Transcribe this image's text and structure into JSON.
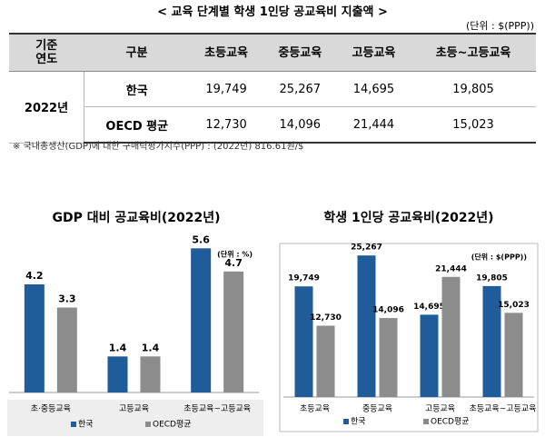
{
  "title": "< 교육 단계별 학생 1인당 공교육비 지출액 >",
  "unit": "(단위 : $(PPP))",
  "table": {
    "header": [
      "기준\n연도",
      "구분",
      "초등교육",
      "중등교육",
      "고등교육",
      "초등~고등교육"
    ],
    "year": "2022년",
    "rows": [
      [
        "한국",
        "19,749",
        "25,267",
        "14,695",
        "19,805"
      ],
      [
        "OECD 평균",
        "12,730",
        "14,096",
        "21,444",
        "15,023"
      ]
    ]
  },
  "note": "※ 국내총생산(GDP)에 대한 구매력평가지수(PPP) : (2022년) 816.61원/$",
  "chart_data": [
    {
      "type": "bar",
      "title": "GDP 대비 공교육비(2022년)",
      "unit": "(단위 : %)",
      "categories": [
        "초·중등교육",
        "고등교육",
        "초등교육~고등교육"
      ],
      "series": [
        {
          "name": "한국",
          "color": "#1f5c99",
          "values": [
            4.2,
            1.4,
            5.6
          ]
        },
        {
          "name": "OECD평균",
          "color": "#8c8c8c",
          "values": [
            3.3,
            1.4,
            4.7
          ]
        }
      ],
      "ylim": [
        0,
        6
      ]
    },
    {
      "type": "bar",
      "title": "학생 1인당 공교육비(2022년)",
      "unit": "(단위 : $(PPP))",
      "categories": [
        "초등교육",
        "중등교육",
        "고등교육",
        "초등교육~고등교육"
      ],
      "series": [
        {
          "name": "한국",
          "color": "#1f5c99",
          "values": [
            19749,
            25267,
            14695,
            19805
          ],
          "value_labels": [
            "19,749",
            "25,267",
            "14,695",
            "19,805"
          ]
        },
        {
          "name": "OECD평균",
          "color": "#8c8c8c",
          "values": [
            12730,
            14096,
            21444,
            15023
          ],
          "value_labels": [
            "12,730",
            "14,096",
            "21,444",
            "15,023"
          ]
        }
      ],
      "ylim": [
        0,
        30000
      ]
    }
  ]
}
